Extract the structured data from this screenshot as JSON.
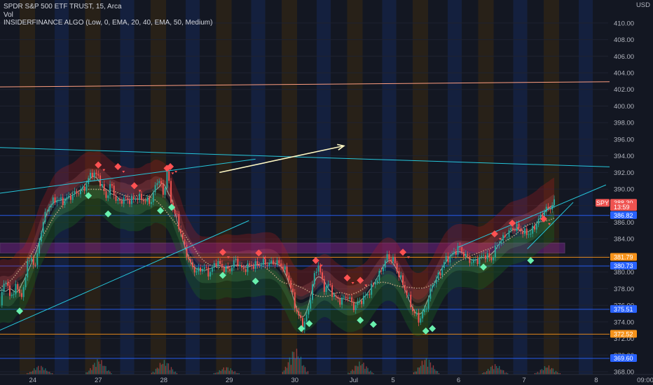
{
  "legend": {
    "symbol_line": "SPDR S&P 500 ETF TRUST, 15, Arca",
    "volume_line": "Vol",
    "indicator_line": "INSIDERFINANCE ALGO (Low, 0, EMA, 20, 40, EMA, 50, Medium)"
  },
  "colors": {
    "background": "#131722",
    "bull": "#26a69a",
    "bear": "#ef5350",
    "orange_level": "#f7931a",
    "blue_level": "#2962ff",
    "zone": "#9c27b0",
    "ema_red": "#ff5252",
    "ema_green": "#69f0ae"
  },
  "chart_data": {
    "type": "candlestick",
    "ticker": "SPY",
    "currency": "USD",
    "y_axis": {
      "min": 368,
      "max": 411,
      "ticks": [
        "410.00",
        "408.00",
        "406.00",
        "404.00",
        "402.00",
        "400.00",
        "398.00",
        "396.00",
        "394.00",
        "392.00",
        "390.00",
        "388.00",
        "386.00",
        "384.00",
        "382.00",
        "380.00",
        "378.00",
        "376.00",
        "374.00",
        "372.00",
        "370.00",
        "368.00"
      ]
    },
    "x_axis": {
      "labels": [
        {
          "text": "24",
          "pos": 0.5
        },
        {
          "text": "27",
          "pos": 1.5
        },
        {
          "text": "28",
          "pos": 2.5
        },
        {
          "text": "29",
          "pos": 3.5
        },
        {
          "text": "30",
          "pos": 4.5
        },
        {
          "text": "Jul",
          "pos": 5.4
        },
        {
          "text": "5",
          "pos": 6.0
        },
        {
          "text": "6",
          "pos": 7.0
        },
        {
          "text": "7",
          "pos": 8.0
        },
        {
          "text": "8",
          "pos": 9.1
        },
        {
          "text": "09:00",
          "pos": 9.85
        }
      ]
    },
    "price_tags": [
      {
        "text": "388.30",
        "value": 388.3,
        "color": "#ef5350"
      },
      {
        "text": "13:59",
        "value": 387.8,
        "color": "#ef5350"
      },
      {
        "text": "SPY",
        "value": 388.3,
        "color": "#ef5350",
        "side": "left"
      },
      {
        "text": "386.82",
        "value": 386.82,
        "color": "#2962ff"
      },
      {
        "text": "381.79",
        "value": 381.79,
        "color": "#f7931a"
      },
      {
        "text": "380.73",
        "value": 380.73,
        "color": "#2962ff"
      },
      {
        "text": "375.51",
        "value": 375.51,
        "color": "#2962ff"
      },
      {
        "text": "372.52",
        "value": 372.52,
        "color": "#f7931a"
      },
      {
        "text": "369.60",
        "value": 369.6,
        "color": "#2962ff"
      }
    ],
    "horizontal_levels": [
      {
        "value": 386.82,
        "color": "#2962ff"
      },
      {
        "value": 381.79,
        "color": "#f7931a"
      },
      {
        "value": 380.73,
        "color": "#2962ff"
      },
      {
        "value": 375.51,
        "color": "#2962ff"
      },
      {
        "value": 372.52,
        "color": "#f7931a"
      },
      {
        "value": 369.6,
        "color": "#2962ff"
      }
    ],
    "zone": {
      "top": 383.5,
      "bottom": 382.3,
      "color": "#9c27b0"
    },
    "price_path": [
      [
        0.0,
        376.0
      ],
      [
        0.08,
        379.5
      ],
      [
        0.15,
        377.0
      ],
      [
        0.25,
        378.2
      ],
      [
        0.35,
        377.0
      ],
      [
        0.42,
        381.5
      ],
      [
        0.55,
        381.0
      ],
      [
        0.65,
        386.0
      ],
      [
        0.75,
        388.0
      ],
      [
        0.85,
        388.8
      ],
      [
        0.95,
        388.5
      ],
      [
        1.05,
        389.0
      ],
      [
        1.15,
        389.5
      ],
      [
        1.28,
        390.0
      ],
      [
        1.4,
        392.0
      ],
      [
        1.5,
        391.5
      ],
      [
        1.62,
        389.0
      ],
      [
        1.7,
        390.6
      ],
      [
        1.78,
        388.4
      ],
      [
        1.9,
        388.8
      ],
      [
        2.0,
        388.6
      ],
      [
        2.1,
        389.0
      ],
      [
        2.22,
        388.6
      ],
      [
        2.3,
        388.4
      ],
      [
        2.42,
        391.5
      ],
      [
        2.5,
        389.0
      ],
      [
        2.55,
        392.3
      ],
      [
        2.62,
        388.0
      ],
      [
        2.7,
        386.5
      ],
      [
        2.8,
        383.5
      ],
      [
        2.9,
        381.0
      ],
      [
        3.0,
        380.0
      ],
      [
        3.1,
        380.6
      ],
      [
        3.2,
        379.8
      ],
      [
        3.3,
        381.3
      ],
      [
        3.4,
        380.5
      ],
      [
        3.5,
        380.2
      ],
      [
        3.6,
        381.5
      ],
      [
        3.7,
        380.2
      ],
      [
        3.8,
        380.8
      ],
      [
        3.9,
        380.8
      ],
      [
        4.0,
        381.1
      ],
      [
        4.1,
        381.0
      ],
      [
        4.2,
        381.2
      ],
      [
        4.3,
        380.8
      ],
      [
        4.4,
        379.5
      ],
      [
        4.5,
        376.0
      ],
      [
        4.57,
        374.5
      ],
      [
        4.62,
        373.5
      ],
      [
        4.7,
        375.0
      ],
      [
        4.78,
        379.0
      ],
      [
        4.86,
        381.0
      ],
      [
        4.94,
        378.0
      ],
      [
        5.02,
        378.5
      ],
      [
        5.1,
        377.0
      ],
      [
        5.2,
        376.5
      ],
      [
        5.3,
        377.2
      ],
      [
        5.4,
        375.8
      ],
      [
        5.5,
        376.5
      ],
      [
        5.6,
        377.2
      ],
      [
        5.7,
        378.5
      ],
      [
        5.8,
        379.8
      ],
      [
        5.9,
        381.8
      ],
      [
        6.0,
        381.5
      ],
      [
        6.1,
        379.5
      ],
      [
        6.2,
        377.6
      ],
      [
        6.3,
        375.4
      ],
      [
        6.4,
        374.2
      ],
      [
        6.5,
        375.7
      ],
      [
        6.6,
        378.5
      ],
      [
        6.7,
        379.6
      ],
      [
        6.8,
        381.5
      ],
      [
        6.9,
        382.0
      ],
      [
        7.0,
        383.0
      ],
      [
        7.1,
        382.0
      ],
      [
        7.2,
        381.2
      ],
      [
        7.3,
        381.5
      ],
      [
        7.4,
        382.1
      ],
      [
        7.5,
        381.5
      ],
      [
        7.6,
        383.5
      ],
      [
        7.7,
        384.2
      ],
      [
        7.8,
        385.1
      ],
      [
        7.9,
        385.4
      ],
      [
        8.0,
        384.7
      ],
      [
        8.1,
        384.7
      ],
      [
        8.2,
        386.0
      ],
      [
        8.3,
        387.3
      ],
      [
        8.4,
        387.8
      ],
      [
        8.45,
        388.3
      ]
    ],
    "volume_bars": [
      {
        "center": 0.6,
        "height": 0.35
      },
      {
        "center": 1.5,
        "height": 0.6
      },
      {
        "center": 2.5,
        "height": 0.55
      },
      {
        "center": 3.45,
        "height": 0.3
      },
      {
        "center": 4.5,
        "height": 1.0
      },
      {
        "center": 5.5,
        "height": 0.5
      },
      {
        "center": 6.5,
        "height": 0.65
      },
      {
        "center": 7.55,
        "height": 0.4
      },
      {
        "center": 8.35,
        "height": 0.35
      }
    ],
    "buy_signals": [
      [
        0.3,
        375.3
      ],
      [
        1.35,
        389.2
      ],
      [
        1.65,
        387.0
      ],
      [
        2.45,
        387.4
      ],
      [
        2.62,
        387.8
      ],
      [
        3.4,
        379.6
      ],
      [
        3.9,
        378.9
      ],
      [
        4.6,
        373.2
      ],
      [
        4.72,
        373.8
      ],
      [
        5.5,
        374.2
      ],
      [
        5.7,
        373.7
      ],
      [
        6.5,
        372.9
      ],
      [
        6.6,
        373.2
      ],
      [
        7.38,
        380.6
      ],
      [
        8.1,
        381.4
      ]
    ],
    "sell_signals": [
      [
        1.5,
        392.9
      ],
      [
        1.8,
        392.7
      ],
      [
        2.05,
        390.4
      ],
      [
        2.55,
        392.5
      ],
      [
        2.6,
        392.7
      ],
      [
        3.4,
        382.4
      ],
      [
        3.95,
        382.3
      ],
      [
        4.82,
        381.4
      ],
      [
        5.3,
        379.3
      ],
      [
        5.5,
        379.0
      ],
      [
        6.15,
        382.4
      ],
      [
        7.55,
        384.6
      ],
      [
        7.82,
        385.9
      ],
      [
        8.3,
        386.4
      ]
    ],
    "diagonal_lines": [
      {
        "from": [
          0.0,
          395.0
        ],
        "to": [
          10.4,
          392.4
        ],
        "color": "#26c6da"
      },
      {
        "from": [
          0.0,
          389.5
        ],
        "to": [
          3.9,
          393.6
        ],
        "color": "#26c6da"
      },
      {
        "from": [
          0.0,
          373.0
        ],
        "to": [
          3.8,
          386.2
        ],
        "color": "#26c6da"
      },
      {
        "from": [
          0.0,
          402.3
        ],
        "to": [
          10.4,
          403.0
        ],
        "color": "#ff9e80"
      },
      {
        "from": [
          7.0,
          383.0
        ],
        "to": [
          9.25,
          390.5
        ],
        "color": "#26c6da"
      },
      {
        "from": [
          8.05,
          382.8
        ],
        "to": [
          8.75,
          388.4
        ],
        "color": "#26c6da"
      }
    ],
    "arrow": {
      "from": [
        3.35,
        392.0
      ],
      "to": [
        5.25,
        395.2
      ],
      "color": "#fff9c4"
    }
  }
}
